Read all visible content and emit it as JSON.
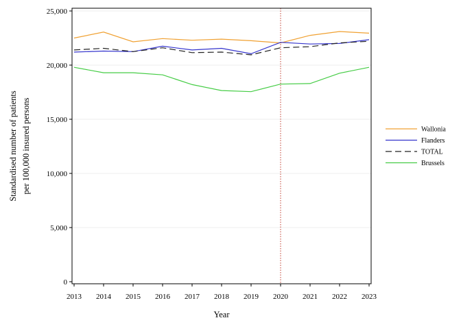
{
  "chart_data": {
    "type": "line",
    "title": "",
    "xlabel": "Year",
    "ylabel_lines": [
      "Standardised number of patients",
      "per 100,000 insured persons"
    ],
    "x": [
      2013,
      2014,
      2015,
      2016,
      2017,
      2018,
      2019,
      2020,
      2021,
      2022,
      2023
    ],
    "x_tick_labels": [
      "2013",
      "2014",
      "2015",
      "2016",
      "2017",
      "2018",
      "2019",
      "2020",
      "2021",
      "2022",
      "2023"
    ],
    "ylim": [
      0,
      25000
    ],
    "y_ticks": [
      0,
      5000,
      10000,
      15000,
      20000,
      25000
    ],
    "y_tick_labels": [
      "0",
      "5,000",
      "10,000",
      "15,000",
      "20,000",
      "25,000"
    ],
    "grid": "horizontal",
    "reference_line": {
      "x": 2020,
      "color": "#c0392b",
      "style": "dotted"
    },
    "legend_position": "right",
    "series": [
      {
        "name": "Wallonia",
        "color": "#f0a030",
        "dash": "solid",
        "values": [
          22500,
          23050,
          22150,
          22450,
          22300,
          22400,
          22250,
          22050,
          22750,
          23100,
          22950
        ]
      },
      {
        "name": "Flanders",
        "color": "#3333cc",
        "dash": "solid",
        "values": [
          21200,
          21300,
          21250,
          21750,
          21400,
          21550,
          21050,
          22100,
          21950,
          22000,
          22350
        ]
      },
      {
        "name": "TOTAL",
        "color": "#222222",
        "dash": "dashed",
        "values": [
          21400,
          21550,
          21250,
          21600,
          21150,
          21200,
          20950,
          21600,
          21700,
          22050,
          22200
        ]
      },
      {
        "name": "Brussels",
        "color": "#44cc44",
        "dash": "solid",
        "values": [
          19800,
          19300,
          19300,
          19100,
          18200,
          17650,
          17550,
          18250,
          18300,
          19250,
          19800
        ]
      }
    ]
  }
}
